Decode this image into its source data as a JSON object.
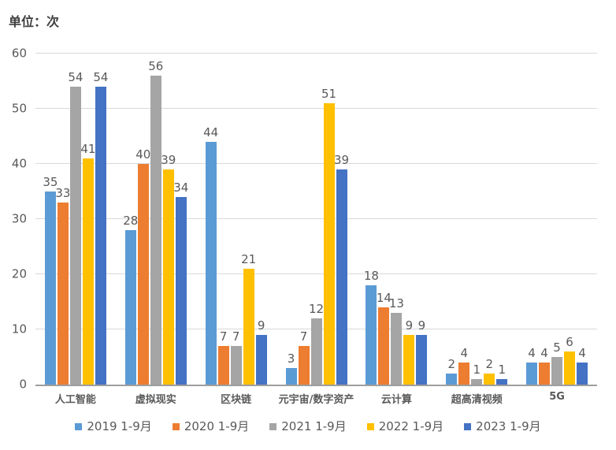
{
  "title": "单位：次",
  "colors": {
    "background": "#FFFFFF",
    "title": "#3F3F3F",
    "text": "#595959",
    "gridline": "#D9D9D9",
    "axis": "#9E9E9E"
  },
  "chart_data": {
    "type": "bar",
    "title": "单位：次",
    "xlabel": "",
    "ylabel": "",
    "categories": [
      "人工智能",
      "虚拟现实",
      "区块链",
      "元宇宙/数字资产",
      "云计算",
      "超高清视频",
      "5G"
    ],
    "series": [
      {
        "name": "2019 1-9月",
        "color": "#5B9BD5",
        "values": [
          35,
          28,
          44,
          3,
          18,
          2,
          4
        ]
      },
      {
        "name": "2020 1-9月",
        "color": "#ED7D31",
        "values": [
          33,
          40,
          7,
          7,
          14,
          4,
          4
        ]
      },
      {
        "name": "2021 1-9月",
        "color": "#A5A5A5",
        "values": [
          54,
          56,
          7,
          12,
          13,
          1,
          5
        ]
      },
      {
        "name": "2022 1-9月",
        "color": "#FFC000",
        "values": [
          41,
          39,
          21,
          51,
          9,
          2,
          6
        ]
      },
      {
        "name": "2023 1-9月",
        "color": "#4472C4",
        "values": [
          54,
          34,
          9,
          39,
          9,
          1,
          4
        ]
      }
    ],
    "ylim": [
      0,
      60
    ],
    "yticks": [
      0,
      10,
      20,
      30,
      40,
      50,
      60
    ],
    "grid": true,
    "value_labels": true,
    "legend_position": "bottom"
  }
}
